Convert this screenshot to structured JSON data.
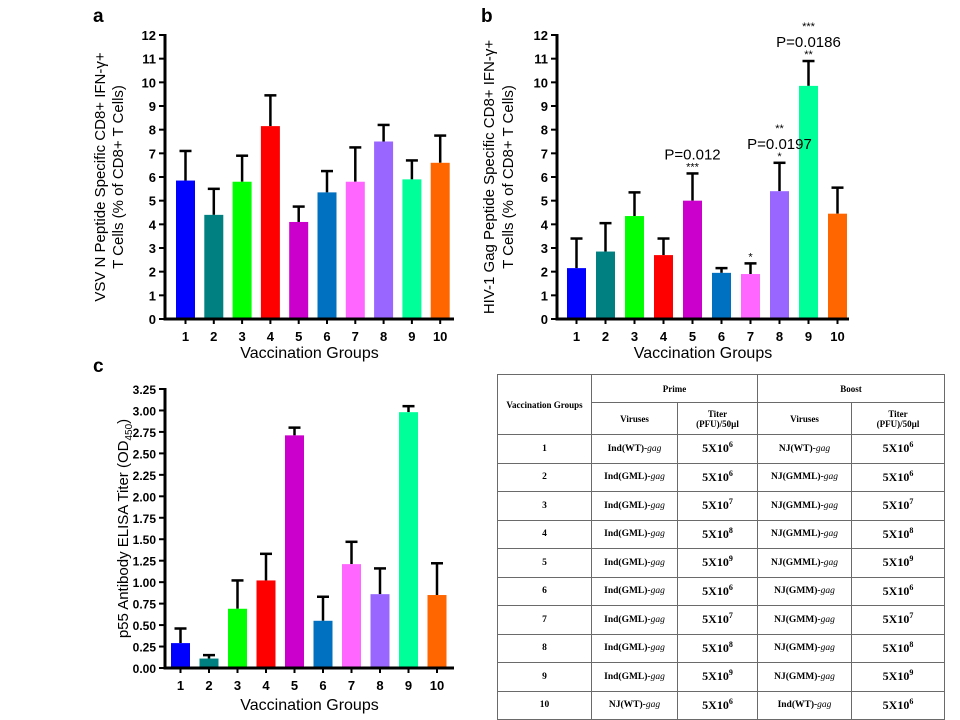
{
  "panels": {
    "a": "a",
    "b": "b",
    "c": "c"
  },
  "colors": [
    "#0000ff",
    "#008080",
    "#00ff00",
    "#ff0000",
    "#cc00cc",
    "#0070c0",
    "#ff66ff",
    "#9966ff",
    "#00ff99",
    "#ff6600"
  ],
  "chart_data": [
    {
      "id": "a",
      "type": "bar",
      "title": "",
      "xlabel": "Vaccination Groups",
      "ylabel_line1": "VSV N Peptide Specific CD8+ IFN-γ+",
      "ylabel_line2": "T Cells (% of CD8+ T Cells)",
      "categories": [
        "1",
        "2",
        "3",
        "4",
        "5",
        "6",
        "7",
        "8",
        "9",
        "10"
      ],
      "values": [
        5.85,
        4.4,
        5.8,
        8.15,
        4.1,
        5.35,
        5.8,
        7.5,
        5.9,
        6.6
      ],
      "errors": [
        1.25,
        1.1,
        1.1,
        1.3,
        0.65,
        0.9,
        1.45,
        0.7,
        0.8,
        1.15
      ],
      "ylim": [
        0,
        12
      ],
      "yticks": [
        "0",
        "1",
        "2",
        "3",
        "4",
        "5",
        "6",
        "7",
        "8",
        "9",
        "10",
        "11",
        "12"
      ],
      "grid": false,
      "annotations": []
    },
    {
      "id": "b",
      "type": "bar",
      "title": "",
      "xlabel": "Vaccination Groups",
      "ylabel_line1": "HIV-1 Gag Peptide Specific CD8+ IFN-γ+",
      "ylabel_line2": "T Cells (% of CD8+ T Cells)",
      "categories": [
        "1",
        "2",
        "3",
        "4",
        "5",
        "6",
        "7",
        "8",
        "9",
        "10"
      ],
      "values": [
        2.15,
        2.85,
        4.35,
        2.7,
        5.0,
        1.95,
        1.9,
        5.4,
        9.85,
        4.45
      ],
      "errors": [
        1.25,
        1.2,
        1.0,
        0.7,
        1.15,
        0.2,
        0.45,
        1.2,
        1.05,
        1.1
      ],
      "ylim": [
        0,
        12
      ],
      "yticks": [
        "0",
        "1",
        "2",
        "3",
        "4",
        "5",
        "6",
        "7",
        "8",
        "9",
        "10",
        "11",
        "12"
      ],
      "grid": false,
      "annotations": [
        {
          "group": 5,
          "star": "***",
          "pvalue": "P=0.012"
        },
        {
          "group": 7,
          "star": "*",
          "pvalue": ""
        },
        {
          "group": 8,
          "star": "*",
          "pvalue": "P=0.0197",
          "star_above": "**"
        },
        {
          "group": 9,
          "star": "**",
          "pvalue": "P=0.0186",
          "star_above": "***"
        }
      ]
    },
    {
      "id": "c",
      "type": "bar",
      "title": "",
      "xlabel": "Vaccination Groups",
      "ylabel_main": "p55 Antibody ELISA Titer (OD",
      "ylabel_sub": "450",
      "ylabel_end": ")",
      "categories": [
        "1",
        "2",
        "3",
        "4",
        "5",
        "6",
        "7",
        "8",
        "9",
        "10"
      ],
      "values": [
        0.29,
        0.11,
        0.69,
        1.02,
        2.71,
        0.55,
        1.21,
        0.86,
        2.98,
        0.85
      ],
      "errors": [
        0.17,
        0.04,
        0.33,
        0.31,
        0.09,
        0.28,
        0.26,
        0.3,
        0.07,
        0.37
      ],
      "ylim": [
        0,
        3.25
      ],
      "yticks": [
        "0.00",
        "0.25",
        "0.50",
        "0.75",
        "1.00",
        "1.25",
        "1.50",
        "1.75",
        "2.00",
        "2.25",
        "2.50",
        "2.75",
        "3.00",
        "3.25"
      ],
      "grid": false,
      "annotations": []
    }
  ],
  "table": {
    "header": {
      "groups": "Vaccination Groups",
      "prime": "Prime",
      "boost": "Boost",
      "viruses": "Viruses",
      "titer_line1": "Titer",
      "titer_line2": "(PFU)/50µl"
    },
    "rows": [
      {
        "group": "1",
        "prime_virus": "Ind(WT)-",
        "prime_gene": "gag",
        "prime_titer": "5X10",
        "prime_exp": "6",
        "boost_virus": "NJ(WT)-",
        "boost_gene": "gag",
        "boost_titer": "5X10",
        "boost_exp": "6"
      },
      {
        "group": "2",
        "prime_virus": "Ind(GML)-",
        "prime_gene": "gag",
        "prime_titer": "5X10",
        "prime_exp": "6",
        "boost_virus": "NJ(GMML)-",
        "boost_gene": "gag",
        "boost_titer": "5X10",
        "boost_exp": "6"
      },
      {
        "group": "3",
        "prime_virus": "Ind(GML)-",
        "prime_gene": "gag",
        "prime_titer": "5X10",
        "prime_exp": "7",
        "boost_virus": "NJ(GMML)-",
        "boost_gene": "gag",
        "boost_titer": "5X10",
        "boost_exp": "7"
      },
      {
        "group": "4",
        "prime_virus": "Ind(GML)-",
        "prime_gene": "gag",
        "prime_titer": "5X10",
        "prime_exp": "8",
        "boost_virus": "NJ(GMML)-",
        "boost_gene": "gag",
        "boost_titer": "5X10",
        "boost_exp": "8"
      },
      {
        "group": "5",
        "prime_virus": "Ind(GML)-",
        "prime_gene": "gag",
        "prime_titer": "5X10",
        "prime_exp": "9",
        "boost_virus": "NJ(GMML)-",
        "boost_gene": "gag",
        "boost_titer": "5X10",
        "boost_exp": "9"
      },
      {
        "group": "6",
        "prime_virus": "Ind(GML)-",
        "prime_gene": "gag",
        "prime_titer": "5X10",
        "prime_exp": "6",
        "boost_virus": "NJ(GMM)-",
        "boost_gene": "gag",
        "boost_titer": "5X10",
        "boost_exp": "6"
      },
      {
        "group": "7",
        "prime_virus": "Ind(GML)-",
        "prime_gene": "gag",
        "prime_titer": "5X10",
        "prime_exp": "7",
        "boost_virus": "NJ(GMM)-",
        "boost_gene": "gag",
        "boost_titer": "5X10",
        "boost_exp": "7"
      },
      {
        "group": "8",
        "prime_virus": "Ind(GML)-",
        "prime_gene": "gag",
        "prime_titer": "5X10",
        "prime_exp": "8",
        "boost_virus": "NJ(GMM)-",
        "boost_gene": "gag",
        "boost_titer": "5X10",
        "boost_exp": "8"
      },
      {
        "group": "9",
        "prime_virus": "Ind(GML)-",
        "prime_gene": "gag",
        "prime_titer": "5X10",
        "prime_exp": "9",
        "boost_virus": "NJ(GMM)-",
        "boost_gene": "gag",
        "boost_titer": "5X10",
        "boost_exp": "9"
      },
      {
        "group": "10",
        "prime_virus": "NJ(WT)-",
        "prime_gene": "gag",
        "prime_titer": "5X10",
        "prime_exp": "6",
        "boost_virus": "Ind(WT)-",
        "boost_gene": "gag",
        "boost_titer": "5X10",
        "boost_exp": "6"
      }
    ]
  }
}
